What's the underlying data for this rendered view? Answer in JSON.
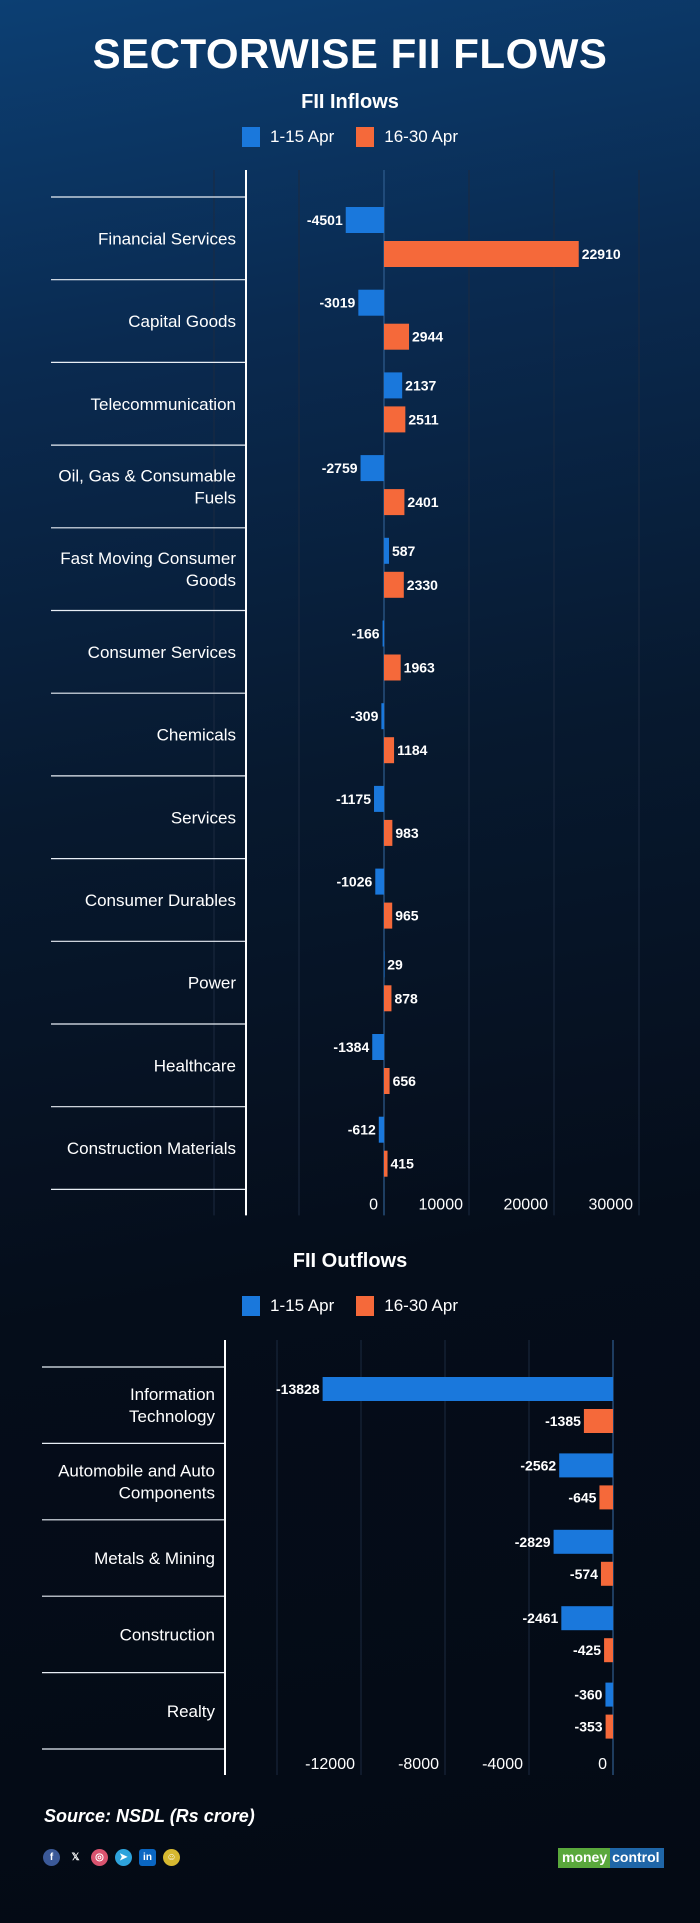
{
  "title": "SECTORWISE FII FLOWS",
  "colors": {
    "series1": "#1a78dc",
    "series2": "#f5693a",
    "background": "#061223",
    "logo_green": "#5aa83c",
    "logo_blue": "#1f66a8"
  },
  "legend": {
    "series1": "1-15 Apr",
    "series2": "16-30 Apr"
  },
  "chart_data": [
    {
      "type": "bar",
      "orientation": "horizontal",
      "title": "FII Inflows",
      "legend_position": "top-center",
      "categories": [
        "Financial Services",
        "Capital Goods",
        "Telecommunication",
        "Oil, Gas & Consumable Fuels",
        "Fast Moving Consumer Goods",
        "Consumer Services",
        "Chemicals",
        "Services",
        "Consumer Durables",
        "Power",
        "Healthcare",
        "Construction Materials"
      ],
      "category_lines": [
        [
          "Financial Services"
        ],
        [
          "Capital Goods"
        ],
        [
          "Telecommunication"
        ],
        [
          "Oil, Gas & Consumable",
          "Fuels"
        ],
        [
          "Fast Moving Consumer",
          "Goods"
        ],
        [
          "Consumer Services"
        ],
        [
          "Chemicals"
        ],
        [
          "Services"
        ],
        [
          "Consumer Durables"
        ],
        [
          "Power"
        ],
        [
          "Healthcare"
        ],
        [
          "Construction Materials"
        ]
      ],
      "series": [
        {
          "name": "1-15 Apr",
          "values": [
            -4501,
            -3019,
            2137,
            -2759,
            587,
            -166,
            -309,
            -1175,
            -1026,
            29,
            -1384,
            -612
          ]
        },
        {
          "name": "16-30 Apr",
          "values": [
            22910,
            2944,
            2511,
            2401,
            2330,
            1963,
            1184,
            983,
            965,
            878,
            656,
            415
          ]
        }
      ],
      "xlim": [
        -20000,
        30000
      ],
      "xticks": [
        0,
        10000,
        20000,
        30000
      ],
      "xtick_labels": [
        "0",
        "10000",
        "20000",
        "30000"
      ],
      "grid": true
    },
    {
      "type": "bar",
      "orientation": "horizontal",
      "title": "FII Outflows",
      "legend_position": "top-center",
      "categories": [
        "Information Technology",
        "Automobile and Auto Components",
        "Metals & Mining",
        "Construction",
        "Realty"
      ],
      "category_lines": [
        [
          "Information",
          "Technology"
        ],
        [
          "Automobile and Auto",
          "Components"
        ],
        [
          "Metals & Mining"
        ],
        [
          "Construction"
        ],
        [
          "Realty"
        ]
      ],
      "series": [
        {
          "name": "1-15 Apr",
          "values": [
            -13828,
            -2562,
            -2829,
            -2461,
            -360
          ]
        },
        {
          "name": "16-30 Apr",
          "values": [
            -1385,
            -645,
            -574,
            -425,
            -353
          ]
        }
      ],
      "xlim": [
        -16000,
        0
      ],
      "xticks": [
        -12000,
        -8000,
        -4000,
        0
      ],
      "xtick_labels": [
        "-12000",
        "-8000",
        "-4000",
        "0"
      ],
      "grid": true
    }
  ],
  "footer": {
    "source": "Source: NSDL (Rs crore)",
    "socials": [
      {
        "icon": "facebook-icon",
        "glyph": "f",
        "color": "#3b5998"
      },
      {
        "icon": "x-icon",
        "glyph": "𝕏",
        "color": "transparent"
      },
      {
        "icon": "instagram-icon",
        "glyph": "◎",
        "color": "#d9536f"
      },
      {
        "icon": "telegram-icon",
        "glyph": "➤",
        "color": "#2ea3dc"
      },
      {
        "icon": "linkedin-icon",
        "glyph": "in",
        "color": "#0a66c2"
      },
      {
        "icon": "snapchat-icon",
        "glyph": "☺",
        "color": "#d6b830"
      }
    ],
    "logo": {
      "part1": "money",
      "part2": "control"
    }
  }
}
